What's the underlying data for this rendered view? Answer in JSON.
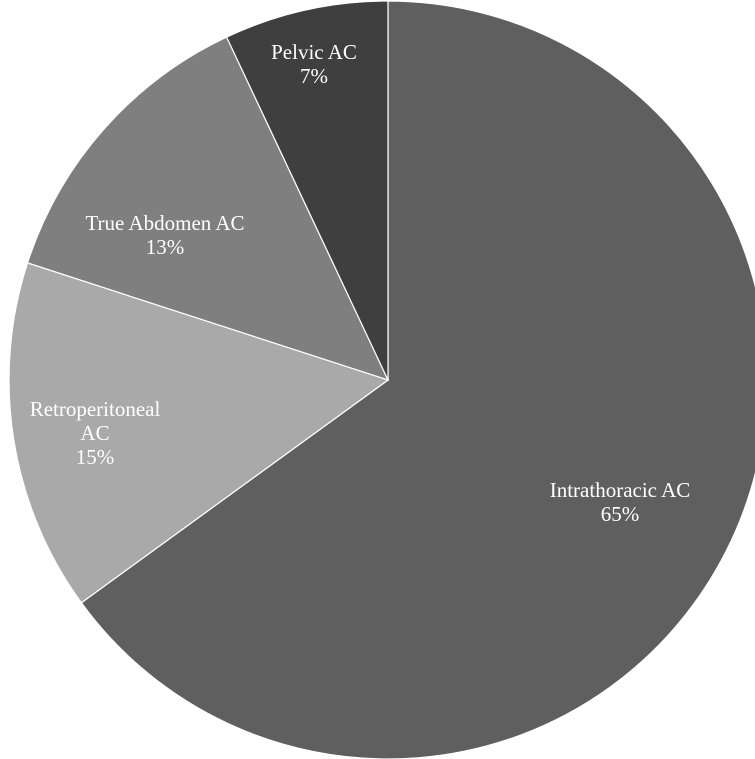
{
  "chart_data": {
    "type": "pie",
    "title": "",
    "start_angle_deg": 0,
    "direction": "clockwise",
    "slices": [
      {
        "label_lines": [
          "Intrathoracic AC"
        ],
        "percent_label": "65%",
        "value": 65,
        "color": "#5f5f5f",
        "label_color": "#ffffff"
      },
      {
        "label_lines": [
          "Retroperitoneal",
          "AC"
        ],
        "percent_label": "15%",
        "value": 15,
        "color": "#a9a9a9",
        "label_color": "#ffffff"
      },
      {
        "label_lines": [
          "True Abdomen AC"
        ],
        "percent_label": "13%",
        "value": 13,
        "color": "#7f7f7f",
        "label_color": "#ffffff"
      },
      {
        "label_lines": [
          "Pelvic AC"
        ],
        "percent_label": "7%",
        "value": 7,
        "color": "#3f3f3f",
        "label_color": "#ffffff"
      }
    ]
  }
}
